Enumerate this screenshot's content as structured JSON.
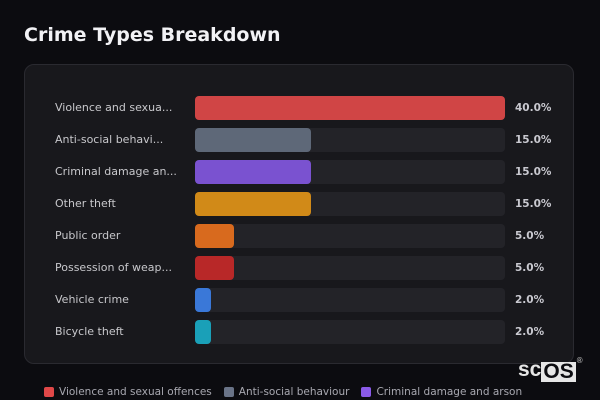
{
  "header": {
    "title": "Crime Types Breakdown"
  },
  "chart_data": {
    "type": "bar",
    "orientation": "horizontal",
    "title": "Crime Types Breakdown",
    "categories": [
      "Violence and sexual offences",
      "Anti-social behaviour",
      "Criminal damage and arson",
      "Other theft",
      "Public order",
      "Possession of weapons",
      "Vehicle crime",
      "Bicycle theft"
    ],
    "display_labels": [
      "Violence and sexua...",
      "Anti-social behavi...",
      "Criminal damage an...",
      "Other theft",
      "Public order",
      "Possession of weap...",
      "Vehicle crime",
      "Bicycle theft"
    ],
    "values": [
      40.0,
      15.0,
      15.0,
      15.0,
      5.0,
      5.0,
      2.0,
      2.0
    ],
    "value_labels": [
      "40.0%",
      "15.0%",
      "15.0%",
      "15.0%",
      "5.0%",
      "5.0%",
      "2.0%",
      "2.0%"
    ],
    "colors": [
      "#d04545",
      "#5e6878",
      "#7a52d0",
      "#d18a18",
      "#d86a1e",
      "#b82828",
      "#3a78d8",
      "#1aa0b8"
    ],
    "unit": "%",
    "xlim": [
      0,
      40
    ],
    "grid": false,
    "legend_position": "bottom",
    "legend": [
      "Violence and sexual offences",
      "Anti-social behaviour",
      "Criminal damage and arson"
    ]
  },
  "rows": [
    {
      "label": "Violence and sexua...",
      "pct": "40.0%",
      "width": "100%",
      "color": "#d04545"
    },
    {
      "label": "Anti-social behavi...",
      "pct": "15.0%",
      "width": "37.5%",
      "color": "#5e6878"
    },
    {
      "label": "Criminal damage an...",
      "pct": "15.0%",
      "width": "37.5%",
      "color": "#7a52d0"
    },
    {
      "label": "Other theft",
      "pct": "15.0%",
      "width": "37.5%",
      "color": "#d18a18"
    },
    {
      "label": "Public order",
      "pct": "5.0%",
      "width": "12.5%",
      "color": "#d86a1e"
    },
    {
      "label": "Possession of weap...",
      "pct": "5.0%",
      "width": "12.5%",
      "color": "#b82828"
    },
    {
      "label": "Vehicle crime",
      "pct": "2.0%",
      "width": "5%",
      "color": "#3a78d8"
    },
    {
      "label": "Bicycle theft",
      "pct": "2.0%",
      "width": "5%",
      "color": "#1aa0b8"
    }
  ],
  "legend": [
    {
      "label": "Violence and sexual offences",
      "color": "#e04848"
    },
    {
      "label": "Anti-social behaviour",
      "color": "#6a7488"
    },
    {
      "label": "Criminal damage and arson",
      "color": "#8a5ae8"
    }
  ],
  "logo": {
    "left": "sc",
    "right": "OS",
    "mark": "®"
  }
}
